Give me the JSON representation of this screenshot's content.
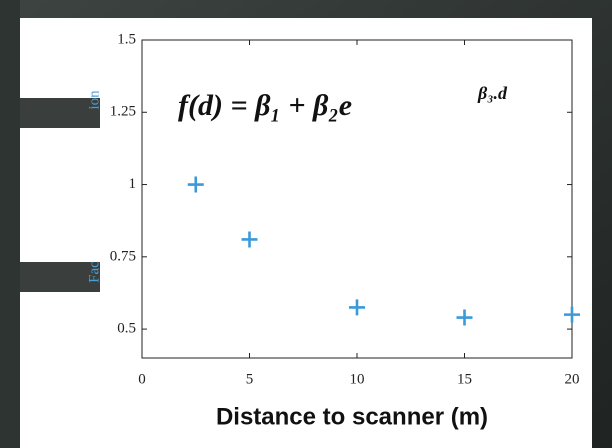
{
  "chart_data": {
    "type": "scatter",
    "xlabel": "Distance to scanner (m)",
    "ylabel_parts": [
      "Fac",
      "ion"
    ],
    "annotation": "f(d) =  β₁ +  β₂e",
    "annotation_exponent": "β₃.d",
    "x": [
      2.5,
      5,
      10,
      15,
      20
    ],
    "values": [
      1.0,
      0.81,
      0.575,
      0.54,
      0.55
    ],
    "color": "#3a9ad9",
    "marker": "+",
    "xlim": [
      0,
      20
    ],
    "xticks": [
      0,
      5,
      10,
      15,
      20
    ],
    "ylim": [
      0.4,
      1.5
    ],
    "yticks": [
      0.5,
      0.75,
      1,
      1.25,
      1.5
    ],
    "grid": false
  }
}
